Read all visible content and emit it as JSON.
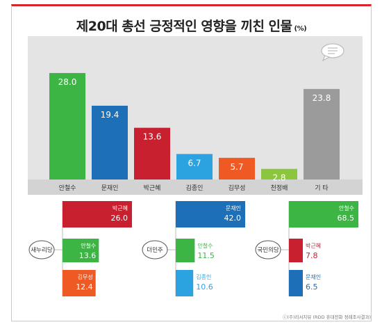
{
  "title": "제20대 총선 긍정적인 영향을 끼친 인물",
  "title_unit": "(%)",
  "source": "ⓒ(주)리서치뷰 (RDD 휴대전화 정례조사결과)",
  "colors": {
    "accent": "#d7262b",
    "panel_bg": "#e4e4e4",
    "green": "#3cb544",
    "blue": "#1d6fb8",
    "red": "#c8202f",
    "sky": "#2aa3e0",
    "orange": "#ef5a24",
    "lime": "#8cc63f",
    "gray": "#9b9b9b"
  },
  "chart_data": [
    {
      "type": "bar",
      "categories": [
        "안철수",
        "문재인",
        "박근혜",
        "김종인",
        "김무성",
        "천정배",
        "기 타"
      ],
      "values": [
        28.0,
        19.4,
        13.6,
        6.7,
        5.7,
        2.8,
        23.8
      ],
      "value_labels": [
        "28.0",
        "19.4",
        "13.6",
        "6.7",
        "5.7",
        "2.8",
        "23.8"
      ],
      "bar_colors": [
        "green",
        "blue",
        "red",
        "sky",
        "orange",
        "lime",
        "gray"
      ],
      "ylim": [
        0,
        30
      ],
      "grid": false
    },
    {
      "type": "bar",
      "group": "새누리당",
      "categories": [
        "박근혜",
        "안철수",
        "김무성"
      ],
      "values": [
        26.0,
        13.6,
        12.4
      ],
      "value_labels": [
        "26.0",
        "13.6",
        "12.4"
      ],
      "bar_colors": [
        "red",
        "green",
        "orange"
      ]
    },
    {
      "type": "bar",
      "group": "더민주",
      "categories": [
        "문재인",
        "안철수",
        "김종인"
      ],
      "values": [
        42.0,
        11.5,
        10.6
      ],
      "value_labels": [
        "42.0",
        "11.5",
        "10.6"
      ],
      "bar_colors": [
        "blue",
        "green",
        "sky"
      ]
    },
    {
      "type": "bar",
      "group": "국민의당",
      "categories": [
        "안철수",
        "박근혜",
        "문재인"
      ],
      "values": [
        68.5,
        7.8,
        6.5
      ],
      "value_labels": [
        "68.5",
        "7.8",
        "6.5"
      ],
      "bar_colors": [
        "green",
        "red",
        "blue"
      ]
    }
  ]
}
